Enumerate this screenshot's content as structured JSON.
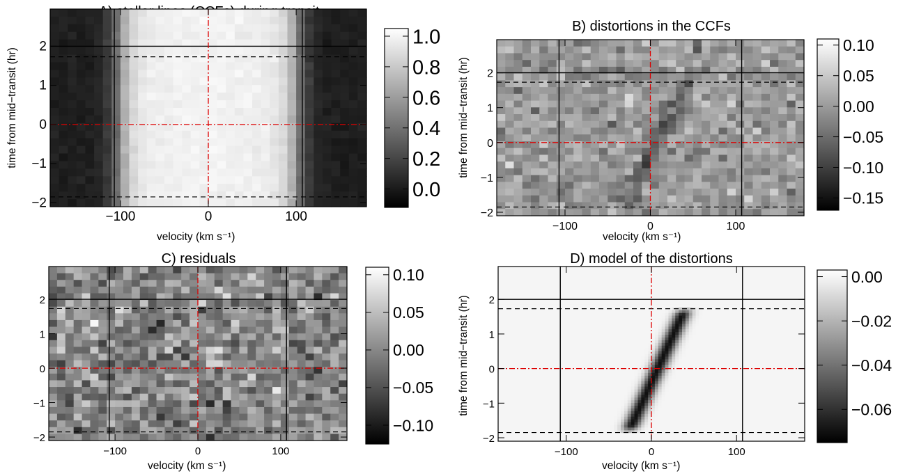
{
  "chart_data": [
    {
      "id": "A",
      "type": "heatmap",
      "title": "A) stellar lines (CCFs) during transit",
      "xlabel": "velocity (km s⁻¹)",
      "ylabel": "time from mid−transit (hr)",
      "xlim": [
        -180,
        180
      ],
      "ylim": [
        -2.1,
        2.95
      ],
      "xticks": [
        -100,
        0,
        100
      ],
      "xtick_labels": [
        "−100",
        "0",
        "100"
      ],
      "yticks": [
        -2,
        -1,
        0,
        1,
        2
      ],
      "ytick_labels": [
        "−2",
        "−1",
        "0",
        "1",
        "2"
      ],
      "colorbar": {
        "range": [
          -0.12,
          1.05
        ],
        "ticks": [
          0.0,
          0.2,
          0.4,
          0.6,
          0.8,
          1.0
        ],
        "tick_labels": [
          "0.0",
          "0.2",
          "0.4",
          "0.6",
          "0.8",
          "1.0"
        ]
      },
      "content": "stellar line profile: bright band between about −105 and +105 km s⁻¹, about 0.9–1.0 in the core, about 0.0 outside",
      "vlines_solid": [
        -107,
        107
      ],
      "hline_solid": 2.0,
      "hlines_dashed": [
        1.73,
        -1.85
      ],
      "center_lines": {
        "x": 0,
        "y": 0,
        "color": "#dd0000",
        "style": "dash-dot"
      }
    },
    {
      "id": "B",
      "type": "heatmap",
      "title": "B) distortions in the CCFs",
      "xlabel": "velocity (km s⁻¹)",
      "ylabel": "time from mid−transit (hr)",
      "xlim": [
        -180,
        180
      ],
      "ylim": [
        -2.1,
        2.95
      ],
      "xticks": [
        -100,
        0,
        100
      ],
      "xtick_labels": [
        "−100",
        "0",
        "100"
      ],
      "yticks": [
        -2,
        -1,
        0,
        1,
        2
      ],
      "ytick_labels": [
        "−2",
        "−1",
        "0",
        "1",
        "2"
      ],
      "colorbar": {
        "range": [
          -0.17,
          0.11
        ],
        "ticks": [
          -0.15,
          -0.1,
          -0.05,
          0.0,
          0.05,
          0.1
        ],
        "tick_labels": [
          "−0.15",
          "−0.10",
          "−0.05",
          "0.00",
          "0.05",
          "0.10"
        ]
      },
      "content": "noise around 0.00 with a dark diagonal trail from about (−20 km s⁻¹, −1.8 hr) to about (+40 km s⁻¹, +1.7 hr)",
      "vlines_solid": [
        -107,
        107
      ],
      "hline_solid": 2.0,
      "hlines_dashed": [
        1.73,
        -1.85
      ],
      "center_lines": {
        "x": 0,
        "y": 0,
        "color": "#dd0000",
        "style": "dash-dot"
      }
    },
    {
      "id": "C",
      "type": "heatmap",
      "title": "C) residuals",
      "xlabel": "velocity (km s⁻¹)",
      "ylabel": "time from mid−transit (hr)",
      "xlim": [
        -180,
        180
      ],
      "ylim": [
        -2.1,
        2.95
      ],
      "xticks": [
        -100,
        0,
        100
      ],
      "xtick_labels": [
        "−100",
        "0",
        "100"
      ],
      "yticks": [
        -2,
        -1,
        0,
        1,
        2
      ],
      "ytick_labels": [
        "−2",
        "−1",
        "0",
        "1",
        "2"
      ],
      "colorbar": {
        "range": [
          -0.125,
          0.11
        ],
        "ticks": [
          -0.1,
          -0.05,
          0.0,
          0.05,
          0.1
        ],
        "tick_labels": [
          "−0.10",
          "−0.05",
          "0.00",
          "0.05",
          "0.10"
        ]
      },
      "content": "noise around 0.00, no structure",
      "vlines_solid": [
        -107,
        107
      ],
      "hline_solid": 2.0,
      "hlines_dashed": [
        1.73,
        -1.85
      ],
      "center_lines": {
        "x": 0,
        "y": 0,
        "color": "#dd0000",
        "style": "dash-dot"
      }
    },
    {
      "id": "D",
      "type": "heatmap",
      "title": "D) model of the distortions",
      "xlabel": "velocity (km s⁻¹)",
      "ylabel": "time from mid−transit (hr)",
      "xlim": [
        -180,
        180
      ],
      "ylim": [
        -2.1,
        2.95
      ],
      "xticks": [
        -100,
        0,
        100
      ],
      "xtick_labels": [
        "−100",
        "0",
        "100"
      ],
      "yticks": [
        -2,
        -1,
        0,
        1,
        2
      ],
      "ytick_labels": [
        "−2",
        "−1",
        "0",
        "1",
        "2"
      ],
      "colorbar": {
        "range": [
          -0.075,
          0.003
        ],
        "ticks": [
          -0.06,
          -0.04,
          -0.02,
          0.0
        ],
        "tick_labels": [
          "−0.06",
          "−0.04",
          "−0.02",
          "0.00"
        ]
      },
      "content": "0.00 everywhere except a dark diagonal band (about −0.07) from about (−27 km s⁻¹, −1.85 hr) to about (+40 km s⁻¹, +1.75 hr)",
      "model_track": {
        "x_start": -27,
        "y_start": -1.85,
        "x_end": 40,
        "y_end": 1.75,
        "depth": -0.07
      },
      "vlines_solid": [
        -107,
        107
      ],
      "hline_solid": 2.0,
      "hlines_dashed": [
        1.73,
        -1.85
      ],
      "center_lines": {
        "x": 0,
        "y": 0,
        "color": "#dd0000",
        "style": "dash-dot"
      }
    }
  ]
}
